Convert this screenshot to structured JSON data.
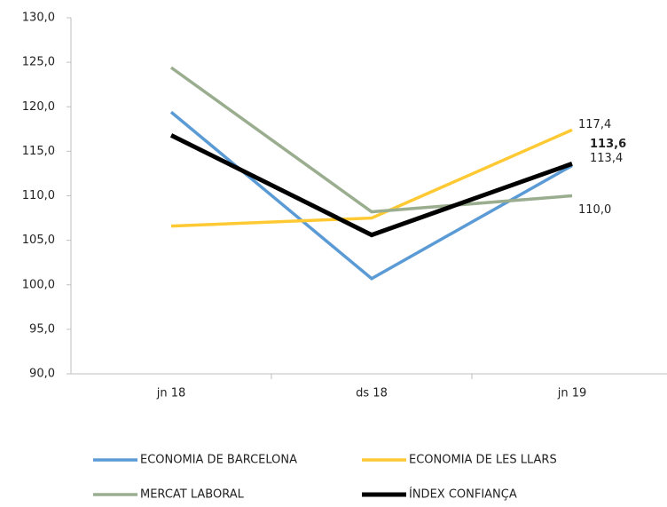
{
  "chart_data": {
    "type": "line",
    "categories": [
      "jn 18",
      "ds 18",
      "jn 19"
    ],
    "ylim": [
      90,
      130
    ],
    "yticks": [
      {
        "value": 90,
        "label": "90,0"
      },
      {
        "value": 95,
        "label": "95,0"
      },
      {
        "value": 100,
        "label": "100,0"
      },
      {
        "value": 105,
        "label": "105,0"
      },
      {
        "value": 110,
        "label": "110,0"
      },
      {
        "value": 115,
        "label": "115,0"
      },
      {
        "value": 120,
        "label": "120,0"
      },
      {
        "value": 125,
        "label": "125,0"
      },
      {
        "value": 130,
        "label": "130,0"
      }
    ],
    "grid": false,
    "series": [
      {
        "name": "ECONOMIA DE BARCELONA",
        "color": "#5b9bd5",
        "values": [
          119.4,
          100.7,
          113.4
        ],
        "value_labels": [
          null,
          null,
          "113,4"
        ]
      },
      {
        "name": "ECONOMIA DE LES LLARS",
        "color": "#ffc933",
        "values": [
          106.6,
          107.5,
          117.4
        ],
        "value_labels": [
          null,
          null,
          "117,4"
        ]
      },
      {
        "name": "MERCAT LABORAL",
        "color": "#9aae8f",
        "values": [
          124.4,
          108.2,
          110.0
        ],
        "value_labels": [
          null,
          null,
          "110,0"
        ]
      },
      {
        "name": "ÍNDEX CONFIANÇA",
        "color": "#000000",
        "values": [
          116.8,
          105.6,
          113.6
        ],
        "value_labels": [
          null,
          null,
          "113,6"
        ]
      }
    ]
  }
}
